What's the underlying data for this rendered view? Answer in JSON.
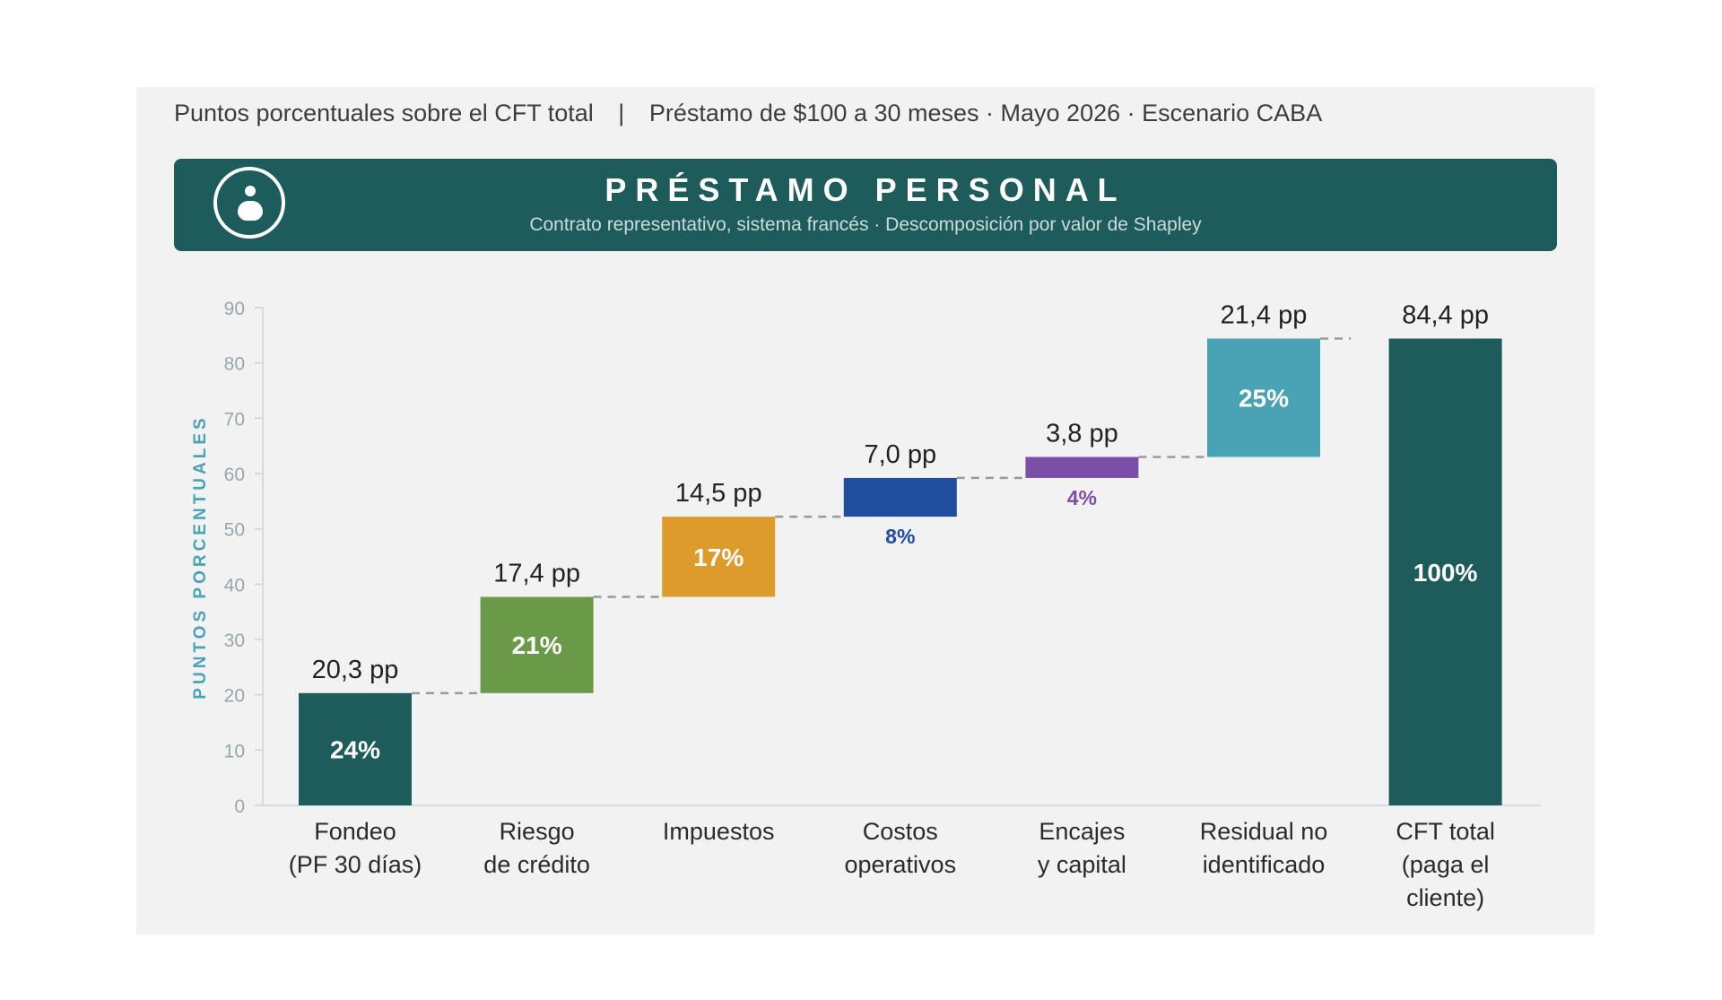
{
  "header": {
    "caption_left": "Puntos porcentuales sobre el CFT total",
    "caption_sep": "|",
    "caption_right": "Préstamo de $100 a 30 meses · Mayo 2026 · Escenario CABA"
  },
  "banner": {
    "title": "PRÉSTAMO PERSONAL",
    "subtitle": "Contrato representativo, sistema francés  ·  Descomposición por valor de Shapley",
    "icon": "person-circle-icon"
  },
  "chart_data": {
    "type": "bar",
    "subtype": "waterfall",
    "ylabel": "PUNTOS PORCENTUALES",
    "ylim": [
      0,
      90
    ],
    "yticks": [
      0,
      10,
      20,
      30,
      40,
      50,
      60,
      70,
      80,
      90
    ],
    "grid": false,
    "bars": [
      {
        "label": [
          "Fondeo",
          "(PF 30 días)"
        ],
        "value": 20.3,
        "value_label": "20,3 pp",
        "pct_label": "24%",
        "color": "#1d5c5a",
        "pct_inside": true,
        "pct_color": "#ffffff"
      },
      {
        "label": [
          "Riesgo",
          "de crédito"
        ],
        "value": 17.4,
        "value_label": "17,4 pp",
        "pct_label": "21%",
        "color": "#6a9a48",
        "pct_inside": true,
        "pct_color": "#ffffff"
      },
      {
        "label": [
          "Impuestos"
        ],
        "value": 14.5,
        "value_label": "14,5 pp",
        "pct_label": "17%",
        "color": "#dd9b2c",
        "pct_inside": true,
        "pct_color": "#ffffff"
      },
      {
        "label": [
          "Costos",
          "operativos"
        ],
        "value": 7.0,
        "value_label": "7,0 pp",
        "pct_label": "8%",
        "color": "#1f4e9e",
        "pct_inside": false,
        "pct_color": "#1f4e9e"
      },
      {
        "label": [
          "Encajes",
          "y capital"
        ],
        "value": 3.8,
        "value_label": "3,8 pp",
        "pct_label": "4%",
        "color": "#7b4fa8",
        "pct_inside": false,
        "pct_color": "#7b4fa8"
      },
      {
        "label": [
          "Residual no",
          "identificado"
        ],
        "value": 21.4,
        "value_label": "21,4 pp",
        "pct_label": "25%",
        "color": "#4aa3b5",
        "pct_inside": true,
        "pct_color": "#ffffff"
      }
    ],
    "total": {
      "label": [
        "CFT total",
        "(paga el",
        "cliente)"
      ],
      "value": 84.4,
      "value_label": "84,4 pp",
      "pct_label": "100%",
      "color": "#1d5c5a",
      "pct_color": "#ffffff"
    }
  }
}
